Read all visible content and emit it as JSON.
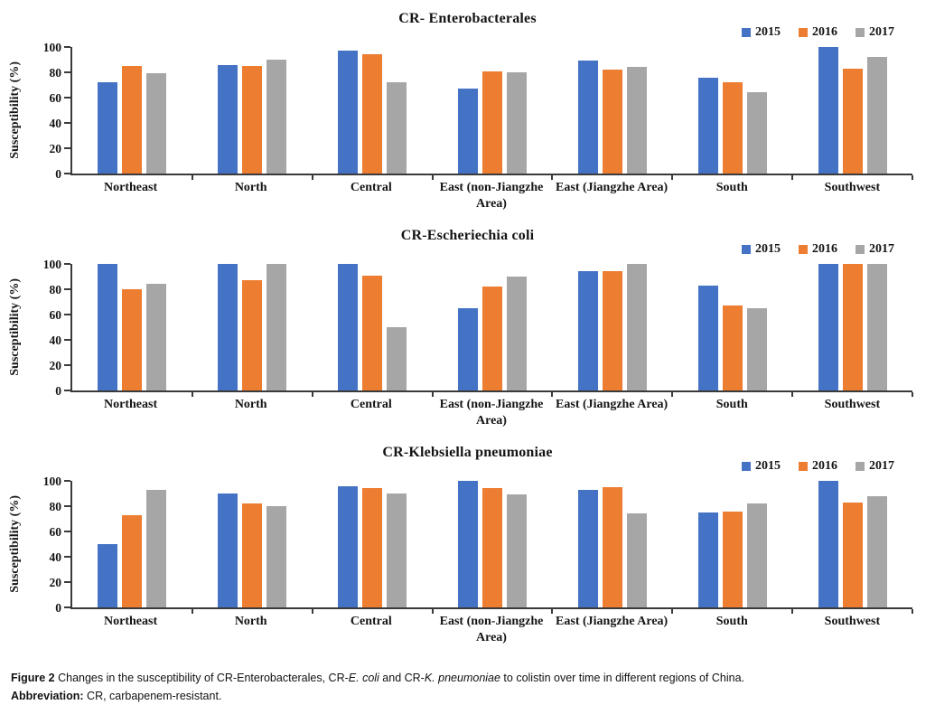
{
  "page": {
    "background": "#ffffff"
  },
  "colors": {
    "y2015": "#4472C4",
    "y2016": "#ED7D31",
    "y2017": "#A6A6A6",
    "axis": "#3a3a3a"
  },
  "chart_data": [
    {
      "type": "bar",
      "title": "CR- Enterobacterales",
      "ylabel": "Susceptibility (%)",
      "xlabel": "",
      "ylim": [
        0,
        100
      ],
      "yticks": [
        0,
        20,
        40,
        60,
        80,
        100
      ],
      "grid": false,
      "legend_position": "top-right",
      "categories": [
        "Northeast",
        "North",
        "Central",
        "East (non-Jiangzhe Area)",
        "East (Jiangzhe Area)",
        "South",
        "Southwest"
      ],
      "series": [
        {
          "name": "2015",
          "color": "#4472C4",
          "values": [
            72,
            86,
            97,
            67,
            89,
            76,
            100
          ]
        },
        {
          "name": "2016",
          "color": "#ED7D31",
          "values": [
            85,
            85,
            94,
            81,
            82,
            72,
            83
          ]
        },
        {
          "name": "2017",
          "color": "#A6A6A6",
          "values": [
            79,
            90,
            72,
            80,
            84,
            64,
            92
          ]
        }
      ]
    },
    {
      "type": "bar",
      "title": "CR-Escheriechia coli",
      "ylabel": "Susceptibility (%)",
      "xlabel": "",
      "ylim": [
        0,
        100
      ],
      "yticks": [
        0,
        20,
        40,
        60,
        80,
        100
      ],
      "grid": false,
      "legend_position": "top-right",
      "categories": [
        "Northeast",
        "North",
        "Central",
        "East (non-Jiangzhe Area)",
        "East (Jiangzhe Area)",
        "South",
        "Southwest"
      ],
      "series": [
        {
          "name": "2015",
          "color": "#4472C4",
          "values": [
            100,
            100,
            100,
            65,
            94,
            83,
            100
          ]
        },
        {
          "name": "2016",
          "color": "#ED7D31",
          "values": [
            80,
            87,
            91,
            82,
            94,
            67,
            100
          ]
        },
        {
          "name": "2017",
          "color": "#A6A6A6",
          "values": [
            84,
            100,
            50,
            90,
            100,
            65,
            100
          ]
        }
      ]
    },
    {
      "type": "bar",
      "title": "CR-Klebsiella pneumoniae",
      "ylabel": "Susceptibility (%)",
      "xlabel": "",
      "ylim": [
        0,
        100
      ],
      "yticks": [
        0,
        20,
        40,
        60,
        80,
        100
      ],
      "grid": false,
      "legend_position": "top-right",
      "categories": [
        "Northeast",
        "North",
        "Central",
        "East (non-Jiangzhe Area)",
        "East (Jiangzhe Area)",
        "South",
        "Southwest"
      ],
      "series": [
        {
          "name": "2015",
          "color": "#4472C4",
          "values": [
            50,
            90,
            96,
            100,
            93,
            75,
            100
          ]
        },
        {
          "name": "2016",
          "color": "#ED7D31",
          "values": [
            73,
            82,
            94,
            94,
            95,
            76,
            83
          ]
        },
        {
          "name": "2017",
          "color": "#A6A6A6",
          "values": [
            93,
            80,
            90,
            89,
            74,
            82,
            88
          ]
        }
      ]
    }
  ],
  "caption": {
    "line1": [
      {
        "text": "Figure 2",
        "bold": true
      },
      {
        "text": " Changes in the susceptibility of CR-Enterobacterales, CR-"
      },
      {
        "text": "E. coli",
        "italic": true
      },
      {
        "text": " and CR-"
      },
      {
        "text": "K. pneumoniae",
        "italic": true
      },
      {
        "text": " to colistin over time in different regions of China."
      }
    ],
    "line2": [
      {
        "text": "Abbreviation:",
        "bold": true
      },
      {
        "text": " CR, carbapenem-resistant."
      }
    ]
  }
}
